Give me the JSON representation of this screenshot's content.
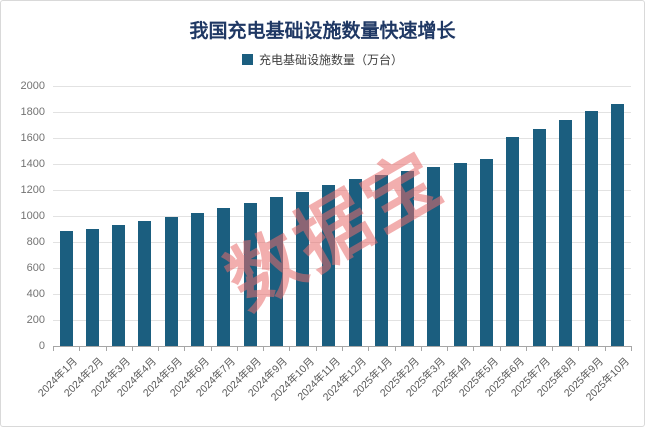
{
  "frame": {
    "border_color": "#d9d9d9",
    "background": "#ffffff"
  },
  "header": {
    "title": "我国充电基础设施数量快速增长",
    "title_color": "#1f3864"
  },
  "legend": {
    "label": "充电基础设施数量（万台）",
    "marker_color": "#1b5e7f"
  },
  "watermark": {
    "text": "数据宝",
    "color": "#e86c6c"
  },
  "chart_data": {
    "type": "bar",
    "title": "我国充电基础设施数量快速增长",
    "legend_entries": [
      "充电基础设施数量（万台）"
    ],
    "categories": [
      "2024年1月",
      "2024年2月",
      "2024年3月",
      "2024年4月",
      "2024年5月",
      "2024年6月",
      "2024年7月",
      "2024年8月",
      "2024年9月",
      "2024年10月",
      "2024年11月",
      "2024年12月",
      "2025年1月",
      "2025年2月",
      "2025年3月",
      "2025年4月",
      "2025年5月",
      "2025年6月",
      "2025年7月",
      "2025年8月",
      "2025年9月",
      "2025年10月"
    ],
    "values": [
      886,
      902,
      931,
      961,
      992,
      1024,
      1060,
      1100,
      1143,
      1188,
      1235,
      1282,
      1318,
      1350,
      1375,
      1408,
      1440,
      1610,
      1670,
      1735,
      1806,
      1865
    ],
    "xlabel": "",
    "ylabel": "",
    "ylim": [
      0,
      2000
    ],
    "ytick_interval": 200,
    "bar_color": "#1b5e7f",
    "grid": true,
    "legend_position": "top"
  }
}
